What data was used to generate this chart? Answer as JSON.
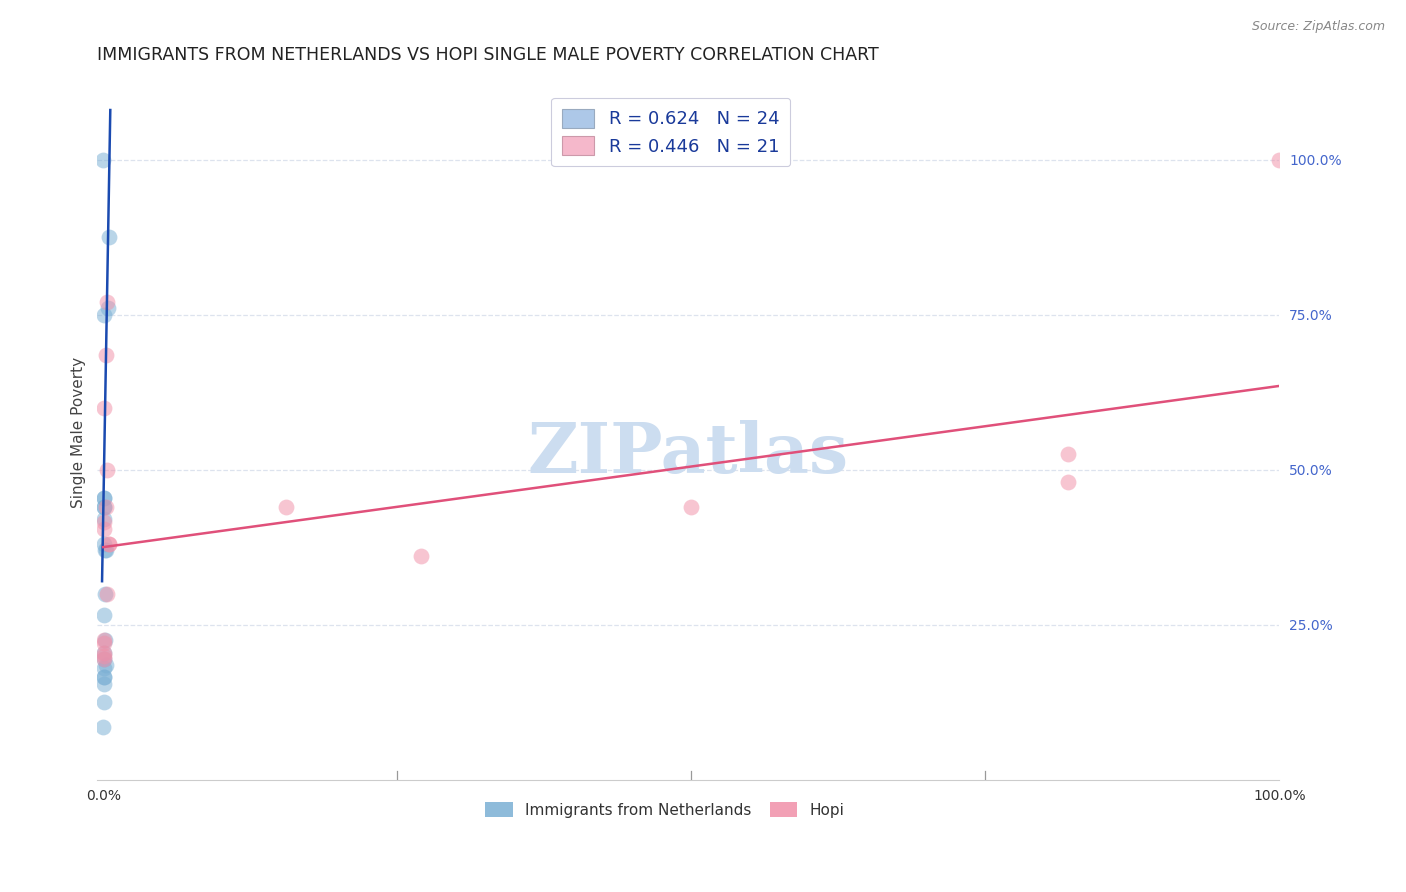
{
  "title": "IMMIGRANTS FROM NETHERLANDS VS HOPI SINGLE MALE POVERTY CORRELATION CHART",
  "source": "Source: ZipAtlas.com",
  "ylabel": "Single Male Poverty",
  "y_ticks_right": [
    "100.0%",
    "75.0%",
    "50.0%",
    "25.0%"
  ],
  "y_ticks_right_vals": [
    1.0,
    0.75,
    0.5,
    0.25
  ],
  "legend_label1": "R = 0.624   N = 24",
  "legend_label2": "R = 0.446   N = 21",
  "legend_color1": "#adc8e8",
  "legend_color2": "#f5b8cb",
  "scatter_color1": "#7aafd4",
  "scatter_color2": "#f090a8",
  "line_color1": "#1a4ab0",
  "line_color2": "#e0507a",
  "watermark": "ZIPatlas",
  "watermark_color": "#ccddf0",
  "legend_text_color": "#1a3a9a",
  "blue_points_x": [
    0.0,
    0.005,
    0.004,
    0.001,
    0.0005,
    0.001,
    0.0005,
    0.001,
    0.001,
    0.001,
    0.0015,
    0.002,
    0.0015,
    0.001,
    0.0015,
    0.0003,
    0.0005,
    0.002,
    0.0003,
    0.0003,
    0.0005,
    0.0005,
    0.0005,
    0.0
  ],
  "blue_points_y": [
    1.0,
    0.875,
    0.76,
    0.75,
    0.455,
    0.455,
    0.44,
    0.44,
    0.42,
    0.38,
    0.37,
    0.37,
    0.3,
    0.265,
    0.225,
    0.205,
    0.195,
    0.185,
    0.18,
    0.165,
    0.165,
    0.155,
    0.125,
    0.085
  ],
  "pink_points_x": [
    1.0,
    0.003,
    0.002,
    0.155,
    0.5,
    0.82,
    0.82,
    0.27,
    0.002,
    0.001,
    0.001,
    0.005,
    0.005,
    0.001,
    0.001,
    0.001,
    0.001,
    0.001,
    0.003,
    0.003,
    0.001
  ],
  "pink_points_y": [
    1.0,
    0.77,
    0.685,
    0.44,
    0.44,
    0.525,
    0.48,
    0.36,
    0.44,
    0.415,
    0.405,
    0.38,
    0.38,
    0.225,
    0.22,
    0.205,
    0.2,
    0.195,
    0.3,
    0.5,
    0.6
  ],
  "blue_line_x": [
    -0.001,
    0.006
  ],
  "blue_line_y": [
    0.32,
    1.08
  ],
  "pink_line_x": [
    0.0,
    1.0
  ],
  "pink_line_y": [
    0.375,
    0.635
  ],
  "xlim": [
    -0.005,
    1.0
  ],
  "ylim": [
    0.0,
    1.12
  ],
  "background_color": "#ffffff",
  "grid_color": "#dde3ee",
  "title_fontsize": 12.5,
  "axis_fontsize": 11,
  "scatter_size": 130,
  "scatter_alpha": 0.52,
  "legend_fontsize": 13,
  "bottom_legend_label1": "Immigrants from Netherlands",
  "bottom_legend_label2": "Hopi",
  "figsize": [
    14.06,
    8.92
  ],
  "dpi": 100
}
